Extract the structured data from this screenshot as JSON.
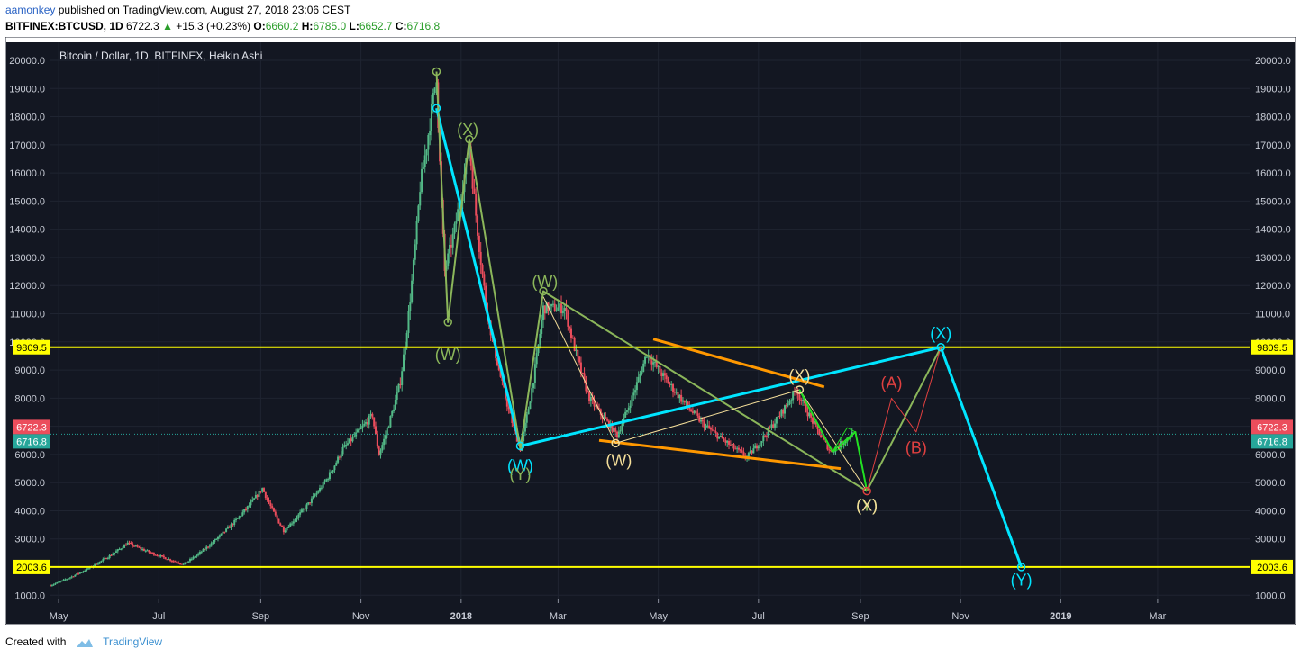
{
  "header": {
    "user": "aamonkey",
    "published_text": "published on TradingView.com, August 27, 2018 23:06 CEST",
    "symbol": "BITFINEX:BTCUSD, 1D",
    "last": "6722.3",
    "change": "+15.3 (+0.23%)",
    "o_label": "O:",
    "o": "6660.2",
    "h_label": "H:",
    "h": "6785.0",
    "l_label": "L:",
    "l": "6652.7",
    "c_label": "C:",
    "c": "6716.8"
  },
  "footer": {
    "created_with": "Created with",
    "brand": "TradingView"
  },
  "colors": {
    "background": "#131722",
    "frame": "#2a2e39",
    "axis_text": "#000000",
    "grid": "#1f2431",
    "candle_up": "#53b987",
    "candle_down": "#eb4d5c",
    "cyan": "#00e5ff",
    "olive": "#8bb65a",
    "orange": "#ff9800",
    "light_yellow": "#f5df9a",
    "yellow_line": "#ffff00",
    "bright_green": "#22e022",
    "red_path": "#e04040"
  },
  "chart_data": {
    "type": "candlestick",
    "title": "Bitcoin / Dollar, 1D, BITFINEX, Heikin Ashi",
    "y_ticks": [
      "1000.0",
      "2000.0",
      "3000.0",
      "4000.0",
      "5000.0",
      "6000.0",
      "7000.0",
      "8000.0",
      "9000.0",
      "10000.0",
      "11000.0",
      "12000.0",
      "13000.0",
      "14000.0",
      "15000.0",
      "16000.0",
      "17000.0",
      "18000.0",
      "19000.0",
      "20000.0"
    ],
    "y_tick_values": [
      1000,
      2000,
      3000,
      4000,
      5000,
      6000,
      7000,
      8000,
      9000,
      10000,
      11000,
      12000,
      13000,
      14000,
      15000,
      16000,
      17000,
      18000,
      19000,
      20000
    ],
    "ylim": [
      850,
      20000
    ],
    "x_ticks": [
      {
        "label": "May",
        "date": "2017-05-01",
        "bold": false
      },
      {
        "label": "Jul",
        "date": "2017-07-01",
        "bold": false
      },
      {
        "label": "Sep",
        "date": "2017-09-01",
        "bold": false
      },
      {
        "label": "Nov",
        "date": "2017-11-01",
        "bold": false
      },
      {
        "label": "2018",
        "date": "2018-01-01",
        "bold": true
      },
      {
        "label": "Mar",
        "date": "2018-03-01",
        "bold": false
      },
      {
        "label": "May",
        "date": "2018-05-01",
        "bold": false
      },
      {
        "label": "Jul",
        "date": "2018-07-01",
        "bold": false
      },
      {
        "label": "Sep",
        "date": "2018-09-01",
        "bold": false
      },
      {
        "label": "Nov",
        "date": "2018-11-01",
        "bold": false
      },
      {
        "label": "2019",
        "date": "2019-01-01",
        "bold": true
      },
      {
        "label": "Mar",
        "date": "2019-03-01",
        "bold": false
      }
    ],
    "xlim": [
      "2017-04-26",
      "2019-04-26"
    ],
    "price_anchors": [
      [
        "2017-04-26",
        1350
      ],
      [
        "2017-05-25",
        2150
      ],
      [
        "2017-06-12",
        2850
      ],
      [
        "2017-07-16",
        2100
      ],
      [
        "2017-08-05",
        3000
      ],
      [
        "2017-09-02",
        4800
      ],
      [
        "2017-09-15",
        3300
      ],
      [
        "2017-10-12",
        5200
      ],
      [
        "2017-10-21",
        6200
      ],
      [
        "2017-11-08",
        7400
      ],
      [
        "2017-11-12",
        6000
      ],
      [
        "2017-11-25",
        8600
      ],
      [
        "2017-12-07",
        15500
      ],
      [
        "2017-12-17",
        19500
      ],
      [
        "2017-12-22",
        12500
      ],
      [
        "2017-12-28",
        14000
      ],
      [
        "2018-01-06",
        17000
      ],
      [
        "2018-01-17",
        11000
      ],
      [
        "2018-02-06",
        6200
      ],
      [
        "2018-02-20",
        11200
      ],
      [
        "2018-03-05",
        11200
      ],
      [
        "2018-03-20",
        8000
      ],
      [
        "2018-04-06",
        6700
      ],
      [
        "2018-04-24",
        9600
      ],
      [
        "2018-05-28",
        7100
      ],
      [
        "2018-06-24",
        5900
      ],
      [
        "2018-07-24",
        8300
      ],
      [
        "2018-08-14",
        6100
      ],
      [
        "2018-08-27",
        6720
      ]
    ],
    "candle_start": "2017-04-26",
    "candle_end": "2018-08-27",
    "candle_seed": 7,
    "horizontal_levels": [
      {
        "label": "9809.5",
        "value": 9809.5,
        "color": "#ffff00"
      },
      {
        "label": "2003.6",
        "value": 2003.6,
        "color": "#ffff00"
      }
    ],
    "price_markers": [
      {
        "label": "6722.3",
        "value": 6722.3,
        "color": "#eb4d5c"
      },
      {
        "label": "6716.8",
        "value": 6716.8,
        "color": "#26a69a"
      }
    ],
    "last_price_line": 6720,
    "wave_paths": [
      {
        "name": "cyan",
        "color": "#00e5ff",
        "width": 3,
        "points": [
          [
            "2017-12-17",
            18300
          ],
          [
            "2018-02-06",
            6300
          ],
          [
            "2018-10-20",
            9809.5
          ],
          [
            "2018-12-08",
            2003.6
          ]
        ]
      },
      {
        "name": "olive-main",
        "color": "#8bb65a",
        "width": 2,
        "points": [
          [
            "2017-12-17",
            19600
          ],
          [
            "2017-12-24",
            10700
          ],
          [
            "2018-01-06",
            17200
          ],
          [
            "2018-02-06",
            6200
          ],
          [
            "2018-02-20",
            11800
          ],
          [
            "2018-09-05",
            4700
          ]
        ]
      },
      {
        "name": "olive-up",
        "color": "#8bb65a",
        "width": 2,
        "points": [
          [
            "2018-09-05",
            4700
          ],
          [
            "2018-10-20",
            9809.5
          ]
        ]
      },
      {
        "name": "orange-upper",
        "color": "#ff9800",
        "width": 3,
        "points": [
          [
            "2018-04-28",
            10100
          ],
          [
            "2018-08-10",
            8400
          ]
        ]
      },
      {
        "name": "orange-lower",
        "color": "#ff9800",
        "width": 3,
        "points": [
          [
            "2018-03-26",
            6500
          ],
          [
            "2018-08-20",
            5500
          ]
        ]
      },
      {
        "name": "light-yellow",
        "color": "#f5df9a",
        "width": 1,
        "points": [
          [
            "2018-02-20",
            11600
          ],
          [
            "2018-04-05",
            6400
          ],
          [
            "2018-07-26",
            8300
          ],
          [
            "2018-09-05",
            4700
          ]
        ]
      },
      {
        "name": "green-small",
        "color": "#22e022",
        "width": 2,
        "points": [
          [
            "2018-07-26",
            8300
          ],
          [
            "2018-08-15",
            6100
          ],
          [
            "2018-08-29",
            6800
          ],
          [
            "2018-09-05",
            4700
          ]
        ]
      },
      {
        "name": "green-box",
        "color": "#22e022",
        "width": 1,
        "points": [
          [
            "2018-08-15",
            6100
          ],
          [
            "2018-08-24",
            6950
          ],
          [
            "2018-08-29",
            6800
          ],
          [
            "2018-08-20",
            6200
          ],
          [
            "2018-08-15",
            6100
          ]
        ]
      },
      {
        "name": "red-path",
        "color": "#e04040",
        "width": 1,
        "points": [
          [
            "2018-09-05",
            4700
          ],
          [
            "2018-09-20",
            8000
          ],
          [
            "2018-10-05",
            6800
          ],
          [
            "2018-10-20",
            9809.5
          ]
        ]
      }
    ],
    "wave_labels": [
      {
        "text": "(X)",
        "date": "2018-01-05",
        "value": 17350,
        "color": "#8bb65a"
      },
      {
        "text": "(W)",
        "date": "2017-12-24",
        "value": 9350,
        "color": "#8bb65a"
      },
      {
        "text": "(W)",
        "date": "2018-02-21",
        "value": 11950,
        "color": "#8bb65a"
      },
      {
        "text": "(W)",
        "date": "2018-02-06",
        "value": 5400,
        "color": "#00e5ff"
      },
      {
        "text": "(Y)",
        "date": "2018-02-06",
        "value": 5100,
        "color": "#8bb65a"
      },
      {
        "text": "(W)",
        "date": "2018-04-07",
        "value": 5600,
        "color": "#f5df9a"
      },
      {
        "text": "(X)",
        "date": "2018-07-26",
        "value": 8600,
        "color": "#f5df9a"
      },
      {
        "text": "(A)",
        "date": "2018-09-20",
        "value": 8350,
        "color": "#e04040"
      },
      {
        "text": "(B)",
        "date": "2018-10-05",
        "value": 6050,
        "color": "#e04040"
      },
      {
        "text": "(X)",
        "date": "2018-10-20",
        "value": 10100,
        "color": "#00e5ff"
      },
      {
        "text": "(Y)",
        "date": "2018-09-05",
        "value": 4000,
        "color": "#8bb65a"
      },
      {
        "text": "(X)",
        "date": "2018-09-05",
        "value": 4000,
        "color": "#f5df9a"
      },
      {
        "text": "(Y)",
        "date": "2018-12-08",
        "value": 1350,
        "color": "#00e5ff"
      }
    ],
    "wave_nodes": [
      {
        "date": "2017-12-17",
        "value": 18300,
        "color": "#00e5ff"
      },
      {
        "date": "2018-02-06",
        "value": 6300,
        "color": "#00e5ff"
      },
      {
        "date": "2018-10-20",
        "value": 9809.5,
        "color": "#00e5ff"
      },
      {
        "date": "2018-12-08",
        "value": 2003.6,
        "color": "#00e5ff"
      },
      {
        "date": "2017-12-17",
        "value": 19600,
        "color": "#8bb65a"
      },
      {
        "date": "2017-12-24",
        "value": 10700,
        "color": "#8bb65a"
      },
      {
        "date": "2018-01-06",
        "value": 17200,
        "color": "#8bb65a"
      },
      {
        "date": "2018-02-20",
        "value": 11800,
        "color": "#8bb65a"
      },
      {
        "date": "2018-09-05",
        "value": 4700,
        "color": "#e04040"
      },
      {
        "date": "2018-04-05",
        "value": 6400,
        "color": "#f5df9a"
      },
      {
        "date": "2018-07-26",
        "value": 8300,
        "color": "#f5df9a"
      }
    ]
  }
}
